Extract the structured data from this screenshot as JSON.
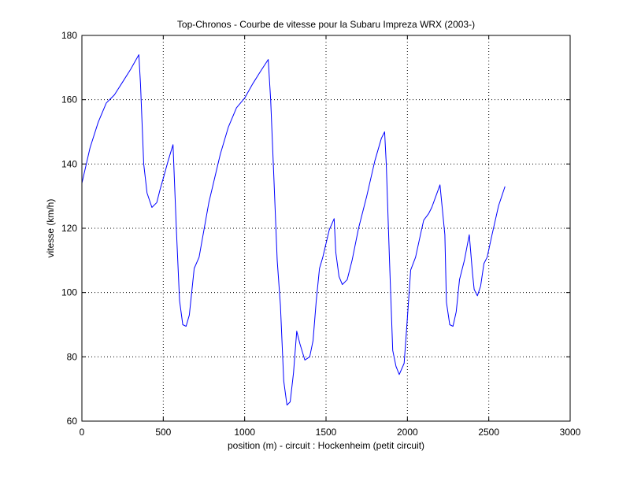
{
  "chart_data": {
    "type": "line",
    "title": "Top-Chronos - Courbe de vitesse pour la Subaru Impreza WRX (2003-)",
    "xlabel": "position (m) - circuit : Hockenheim (petit circuit)",
    "ylabel": "vitesse (km/h)",
    "xlim": [
      0,
      3000
    ],
    "ylim": [
      60,
      180
    ],
    "xticks": [
      0,
      500,
      1000,
      1500,
      2000,
      2500,
      3000
    ],
    "yticks": [
      60,
      80,
      100,
      120,
      140,
      160,
      180
    ],
    "xtick_labels": [
      "0",
      "500",
      "1000",
      "1500",
      "2000",
      "2500",
      "3000"
    ],
    "ytick_labels": [
      "60",
      "80",
      "100",
      "120",
      "140",
      "160",
      "180"
    ],
    "grid": true,
    "line_color": "#0000ff",
    "series": [
      {
        "x": [
          0,
          50,
          100,
          150,
          180,
          200,
          250,
          300,
          350,
          360,
          380,
          400,
          430,
          460,
          480,
          500,
          530,
          560,
          580,
          600,
          620,
          640,
          660,
          690,
          720,
          780,
          850,
          900,
          950,
          1000,
          1050,
          1100,
          1145,
          1160,
          1180,
          1200,
          1220,
          1240,
          1260,
          1280,
          1300,
          1320,
          1340,
          1370,
          1400,
          1420,
          1440,
          1460,
          1480,
          1520,
          1550,
          1560,
          1580,
          1600,
          1630,
          1660,
          1700,
          1750,
          1800,
          1840,
          1860,
          1870,
          1890,
          1910,
          1930,
          1950,
          1980,
          2000,
          2020,
          2050,
          2080,
          2100,
          2130,
          2150,
          2200,
          2230,
          2240,
          2260,
          2280,
          2300,
          2320,
          2350,
          2380,
          2400,
          2410,
          2430,
          2450,
          2470,
          2490,
          2520,
          2560,
          2600
        ],
        "y": [
          134,
          145,
          153,
          159,
          160.5,
          161.5,
          165.5,
          169.5,
          174,
          165,
          140,
          131,
          126.5,
          128,
          132,
          135.5,
          141,
          146,
          120,
          97.5,
          90,
          89.5,
          93,
          107.5,
          111,
          128,
          143,
          151.5,
          157.5,
          160.5,
          165,
          169,
          172.5,
          160,
          135,
          110,
          96,
          72.5,
          65,
          66,
          75,
          88,
          84,
          79,
          80,
          85,
          97.5,
          107.5,
          111,
          119.5,
          123,
          112.5,
          105,
          102.5,
          104,
          110,
          120,
          130,
          141,
          148,
          150,
          140,
          110,
          82,
          77,
          74.5,
          78,
          92,
          107,
          111,
          118,
          122.5,
          124.5,
          126.5,
          133.5,
          118,
          97,
          90,
          89.5,
          94,
          104,
          110,
          118,
          106,
          101,
          99,
          102,
          109,
          111,
          118,
          127,
          133
        ]
      }
    ]
  }
}
